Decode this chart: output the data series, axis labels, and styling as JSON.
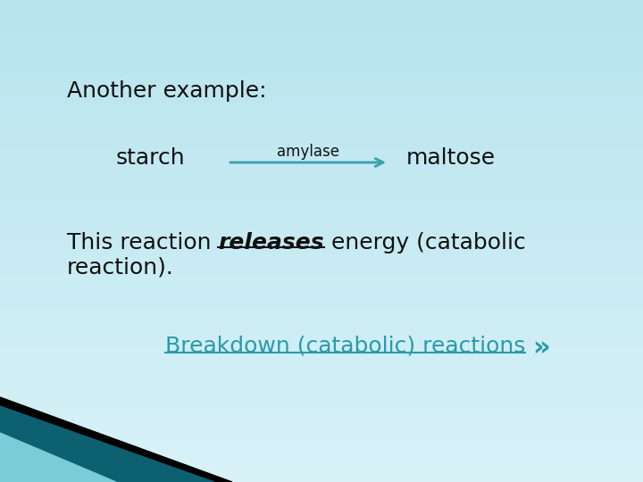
{
  "bg_color": "#cceef5",
  "title_text": "Another example:",
  "starch_text": "starch",
  "amylase_text": "amylase",
  "maltose_text": "maltose",
  "reaction_text_normal": "This reaction ",
  "reaction_text_bold_italic": "releases",
  "reaction_text_after": " energy (catabolic",
  "reaction_text_line2": "reaction).",
  "bottom_link_text": "Breakdown (catabolic) reactions",
  "bottom_chevron": "»",
  "arrow_color": "#3a9faf",
  "text_color_dark": "#111111",
  "text_color_link": "#2a9aaa",
  "title_fontsize": 18,
  "body_fontsize": 18,
  "starch_fontsize": 18,
  "amylase_fontsize": 12,
  "maltose_fontsize": 18,
  "link_fontsize": 18,
  "bottom_strip_dark": "#0d6070",
  "bottom_strip_mid": "#1a8090",
  "bottom_strip_light": "#7accd8",
  "bottom_strip_black": "#000000"
}
